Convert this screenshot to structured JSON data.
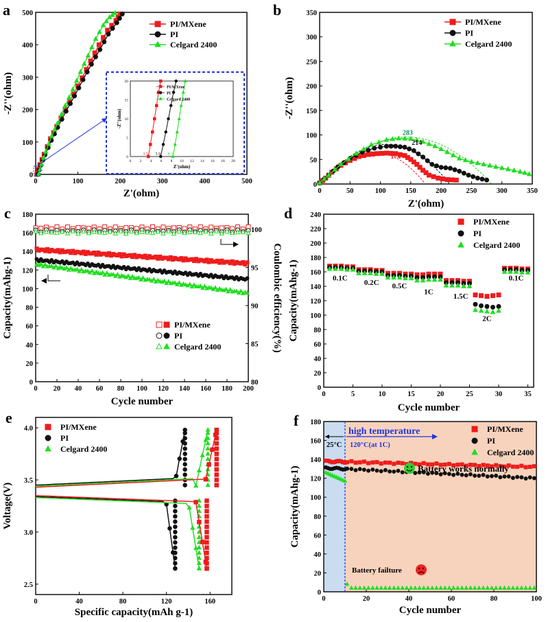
{
  "figure": {
    "series_names": [
      "PI/MXene",
      "PI",
      "Celgard 2400"
    ],
    "colors": {
      "pimx": "#ee1c1c",
      "pi": "#111111",
      "cg": "#22dd22",
      "blue": "#2233dd",
      "peach": "#f7d3bd",
      "lightblue": "#c9dcf0"
    }
  },
  "chart_data": [
    {
      "id": "a",
      "type": "line",
      "panel_label": "a",
      "xlabel": "Z'(ohm)",
      "ylabel": "-Z''(ohm)",
      "xlim": [
        0,
        500
      ],
      "ylim": [
        0,
        500
      ],
      "xticks": [
        "0",
        "100",
        "200",
        "300",
        "400",
        "500"
      ],
      "yticks": [
        "0",
        "100",
        "200",
        "300",
        "400",
        "500"
      ],
      "series": [
        {
          "name": "PI/MXene",
          "x": [
            3,
            10,
            20,
            35,
            50,
            70,
            90,
            110,
            130,
            150,
            170,
            190,
            200
          ],
          "y": [
            0,
            30,
            62,
            110,
            148,
            200,
            248,
            298,
            350,
            400,
            445,
            475,
            495
          ]
        },
        {
          "name": "PI",
          "x": [
            5,
            12,
            22,
            37,
            52,
            72,
            92,
            112,
            132,
            152,
            172,
            192,
            205
          ],
          "y": [
            0,
            28,
            60,
            105,
            145,
            195,
            242,
            292,
            340,
            385,
            433,
            468,
            495
          ]
        },
        {
          "name": "Celgard 2400",
          "x": [
            7,
            14,
            24,
            38,
            52,
            70,
            88,
            106,
            124,
            142,
            160,
            175,
            188
          ],
          "y": [
            0,
            32,
            70,
            118,
            158,
            212,
            262,
            316,
            366,
            418,
            460,
            485,
            498
          ]
        }
      ],
      "inset": {
        "xlabel": "Z'(ohm)",
        "ylabel": "-Z''(ohm)",
        "xlim": [
          0,
          20
        ],
        "ylim": [
          0,
          20
        ],
        "xticks": [
          "0",
          "2",
          "4",
          "6",
          "8",
          "10",
          "12",
          "14",
          "16",
          "18",
          "20"
        ],
        "yticks": [
          "0",
          "5",
          "10",
          "15",
          "20"
        ],
        "intercepts": [
          "3.5",
          "5.9",
          "8.3"
        ],
        "series": [
          {
            "name": "PI/MXene",
            "x": [
              3.5,
              3.9,
              4.3,
              4.7,
              5.1,
              5.5,
              5.9
            ],
            "y": [
              0,
              3.2,
              6.5,
              10,
              13.5,
              17,
              20
            ]
          },
          {
            "name": "PI",
            "x": [
              5.9,
              6.4,
              6.9,
              7.4,
              7.9,
              8.4,
              8.9
            ],
            "y": [
              0,
              3.2,
              6.5,
              10,
              13.5,
              17,
              20
            ]
          },
          {
            "name": "Celgard 2400",
            "x": [
              8.3,
              8.7,
              9.1,
              9.5,
              9.9,
              10.3,
              10.7
            ],
            "y": [
              0,
              3.2,
              6.5,
              10,
              13.5,
              17,
              20
            ]
          }
        ]
      }
    },
    {
      "id": "b",
      "type": "line",
      "panel_label": "b",
      "xlabel": "Z'(ohm)",
      "ylabel": "-Z''(ohm)",
      "xlim": [
        0,
        350
      ],
      "ylim": [
        0,
        350
      ],
      "xticks": [
        "0",
        "50",
        "100",
        "150",
        "200",
        "250",
        "300",
        "350"
      ],
      "yticks": [
        "0",
        "50",
        "100",
        "150",
        "200",
        "250",
        "300",
        "350"
      ],
      "annotations": [
        "174",
        "214",
        "283"
      ],
      "series": [
        {
          "name": "PI/MXene",
          "x": [
            0,
            10,
            20,
            35,
            50,
            65,
            80,
            95,
            110,
            125,
            140,
            150,
            160,
            170,
            180,
            195,
            210,
            225
          ],
          "y": [
            2,
            12,
            24,
            38,
            48,
            56,
            60,
            62,
            63,
            62,
            58,
            50,
            40,
            28,
            18,
            12,
            9,
            8
          ]
        },
        {
          "name": "PI",
          "x": [
            0,
            15,
            30,
            50,
            70,
            90,
            110,
            125,
            140,
            155,
            170,
            185,
            200,
            215,
            230,
            245,
            260,
            275
          ],
          "y": [
            2,
            18,
            35,
            52,
            65,
            73,
            77,
            77,
            75,
            68,
            55,
            40,
            34,
            32,
            26,
            18,
            12,
            8
          ]
        },
        {
          "name": "Celgard 2400",
          "x": [
            0,
            15,
            35,
            60,
            85,
            110,
            130,
            150,
            170,
            190,
            210,
            230,
            250,
            270,
            290,
            310,
            330,
            345
          ],
          "y": [
            2,
            18,
            40,
            62,
            80,
            90,
            93,
            92,
            86,
            77,
            65,
            52,
            45,
            40,
            35,
            30,
            25,
            20
          ]
        }
      ]
    },
    {
      "id": "c",
      "type": "scatter",
      "panel_label": "c",
      "xlabel": "Cycle number",
      "ylabel": "Capacity(mAhg-1)",
      "y2label": "Coulombic efficiency(%)",
      "xlim": [
        0,
        200
      ],
      "ylim": [
        0,
        180
      ],
      "y2lim": [
        80,
        102
      ],
      "xticks": [
        "0",
        "20",
        "40",
        "60",
        "80",
        "100",
        "120",
        "140",
        "160",
        "180",
        "200"
      ],
      "yticks": [
        "0",
        "20",
        "40",
        "60",
        "80",
        "100",
        "120",
        "140",
        "160",
        "180"
      ],
      "y2ticks": [
        "80",
        "85",
        "90",
        "95",
        "100"
      ],
      "series": [
        {
          "name": "PI/MXene",
          "capacity_start": 142,
          "capacity_end": 127,
          "efficiency": 100.2
        },
        {
          "name": "PI",
          "capacity_start": 131,
          "capacity_end": 110,
          "efficiency": 99.8
        },
        {
          "name": "Celgard 2400",
          "capacity_start": 126,
          "capacity_end": 95,
          "efficiency": 99.6
        }
      ]
    },
    {
      "id": "d",
      "type": "scatter",
      "panel_label": "d",
      "xlabel": "Cycle number",
      "ylabel": "Capacity(mAhg-1)",
      "xlim": [
        0,
        36
      ],
      "ylim": [
        0,
        240
      ],
      "xticks": [
        "0",
        "5",
        "10",
        "15",
        "20",
        "25",
        "30",
        "35"
      ],
      "yticks": [
        "0",
        "20",
        "40",
        "60",
        "80",
        "100",
        "120",
        "140",
        "160",
        "180",
        "200",
        "220",
        "240"
      ],
      "rate_labels": [
        "0.1C",
        "0.2C",
        "0.5C",
        "1C",
        "1.5C",
        "2C",
        "0.1C"
      ],
      "series": [
        {
          "name": "PI/MXene",
          "values": [
            168,
            168,
            168,
            167,
            167,
            163,
            163,
            163,
            162,
            162,
            158,
            158,
            158,
            157,
            157,
            156,
            156,
            157,
            157,
            157,
            148,
            148,
            148,
            147,
            147,
            128,
            127,
            126,
            127,
            128,
            165,
            165,
            165,
            164,
            164
          ]
        },
        {
          "name": "PI",
          "values": [
            166,
            166,
            166,
            165,
            165,
            161,
            161,
            161,
            160,
            160,
            155,
            155,
            155,
            154,
            154,
            152,
            152,
            153,
            153,
            153,
            145,
            145,
            145,
            144,
            144,
            115,
            113,
            112,
            111,
            112,
            163,
            163,
            163,
            162,
            162
          ]
        },
        {
          "name": "Celgard 2400",
          "values": [
            164,
            164,
            164,
            163,
            163,
            158,
            158,
            158,
            157,
            157,
            152,
            152,
            152,
            151,
            151,
            148,
            148,
            149,
            149,
            149,
            141,
            141,
            141,
            140,
            140,
            107,
            106,
            105,
            104,
            106,
            160,
            160,
            160,
            159,
            159
          ]
        }
      ]
    },
    {
      "id": "e",
      "type": "line",
      "panel_label": "e",
      "xlabel": "Specific capacity(mAh g-1)",
      "ylabel": "Voltage(V)",
      "xlim": [
        0,
        180
      ],
      "ylim": [
        2.4,
        4.1
      ],
      "xticks": [
        "0",
        "40",
        "80",
        "120",
        "160"
      ],
      "yticks": [
        "2.5",
        "3.0",
        "3.5",
        "4.0"
      ],
      "series": [
        {
          "name": "PI/MXene",
          "charge_plateau": 3.43,
          "discharge_plateau": 3.35,
          "charge_capacity": 166,
          "discharge_capacity": 157
        },
        {
          "name": "PI",
          "charge_plateau": 3.45,
          "discharge_plateau": 3.34,
          "charge_capacity": 137,
          "discharge_capacity": 128
        },
        {
          "name": "Celgard 2400",
          "charge_plateau": 3.44,
          "discharge_plateau": 3.33,
          "charge_capacity": 158,
          "discharge_capacity": 150
        }
      ]
    },
    {
      "id": "f",
      "type": "scatter",
      "panel_label": "f",
      "xlabel": "Cycle number",
      "ylabel": "Capacity(mAhg-1)",
      "xlim": [
        0,
        100
      ],
      "ylim": [
        0,
        180
      ],
      "xticks": [
        "0",
        "20",
        "40",
        "60",
        "80",
        "100"
      ],
      "yticks": [
        "0",
        "20",
        "40",
        "60",
        "80",
        "100",
        "120",
        "140",
        "160",
        "180"
      ],
      "annotations": {
        "high_temperature": "high temperature",
        "room_temp": "25°C",
        "test_condition": "120°C(at 1C)",
        "normal": "Battery works normally",
        "failure": "Battery failture"
      },
      "switch_cycle": 10,
      "series": [
        {
          "name": "PI/MXene",
          "capacity_start": 138,
          "capacity_end": 132
        },
        {
          "name": "PI",
          "capacity_start": 131,
          "capacity_end": 120
        },
        {
          "name": "Celgard 2400",
          "capacity_start": 126,
          "capacity_end": 4
        }
      ]
    }
  ]
}
